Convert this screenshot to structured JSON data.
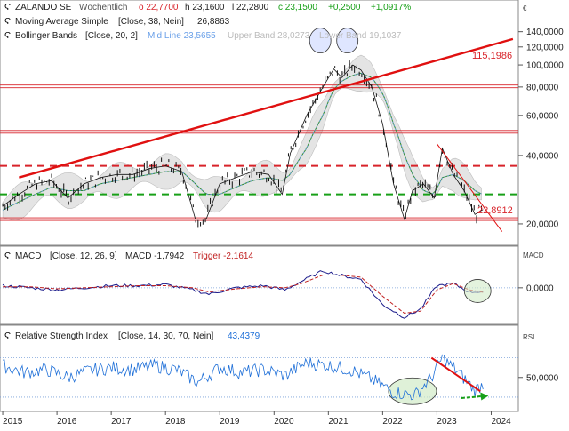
{
  "chart_data": [
    {
      "type": "line",
      "panel": "price",
      "scale": "log",
      "currency_marker": "€",
      "ylim": [
        17,
        150
      ],
      "y_ticks": [
        {
          "value": 140,
          "label": "140,0000"
        },
        {
          "value": 120,
          "label": "120,0000"
        },
        {
          "value": 100,
          "label": "100,0000"
        },
        {
          "value": 80,
          "label": "80,0000"
        },
        {
          "value": 60,
          "label": "60,0000"
        },
        {
          "value": 40,
          "label": "40,0000"
        },
        {
          "value": 20,
          "label": "20,0000"
        }
      ],
      "legend": [
        {
          "name": "ZALANDO SE",
          "text": "Wöchentlich",
          "o": "o 22,7700",
          "h": "h 23,1600",
          "l": "l 22,2800",
          "c": "c 23,1500",
          "chg": "+0,2500",
          "pct": "+1,0917%"
        },
        {
          "name": "Moving Average Simple",
          "params": "[Close, 38, Nein]",
          "value": "26,8863"
        },
        {
          "name": "Bollinger Bands",
          "params": "[Close, 20, 2]",
          "mid": "Mid Line 23,5655",
          "upper": "Upper Band 28,0273",
          "lower": "Lower Band 19,1037"
        }
      ],
      "annotations": [
        {
          "text": "115,1986",
          "value": 115.1986,
          "color": "#d8232a"
        },
        {
          "text": "22,8912",
          "value": 22.8912,
          "color": "#d8232a"
        }
      ],
      "x": [
        2015.0,
        2015.3,
        2015.6,
        2015.9,
        2016.2,
        2016.5,
        2016.8,
        2017.1,
        2017.4,
        2017.7,
        2018.0,
        2018.3,
        2018.55,
        2018.75,
        2019.0,
        2019.3,
        2019.6,
        2019.9,
        2020.15,
        2020.3,
        2020.6,
        2020.9,
        2021.1,
        2021.25,
        2021.45,
        2021.6,
        2021.8,
        2022.0,
        2022.2,
        2022.4,
        2022.55,
        2022.75,
        2022.95,
        2023.1,
        2023.3,
        2023.5,
        2023.7,
        2023.85
      ],
      "series": [
        {
          "name": "ZALANDO SE",
          "color": "#000000",
          "values": [
            24,
            27,
            30,
            31,
            26,
            30,
            32,
            33,
            33,
            35,
            36,
            34,
            21,
            21,
            30,
            32,
            34,
            33,
            27,
            41,
            60,
            80,
            96,
            88,
            100,
            95,
            80,
            55,
            30,
            21,
            28,
            30,
            26,
            43,
            33,
            28,
            22,
            23.15
          ]
        },
        {
          "name": "Moving Average Simple",
          "color": "#2e8b2e",
          "values": [
            23,
            25,
            27,
            29,
            28,
            28,
            30,
            31,
            32,
            33,
            34,
            34,
            30,
            27,
            27,
            29,
            31,
            32,
            31,
            33,
            43,
            60,
            78,
            85,
            90,
            92,
            88,
            75,
            55,
            40,
            33,
            28,
            27,
            32,
            33,
            31,
            28,
            26.89
          ]
        }
      ],
      "levels": [
        {
          "value": 80.5,
          "color": "#d8232a",
          "style": "double"
        },
        {
          "value": 50.8,
          "color": "#d8232a",
          "style": "double"
        },
        {
          "value": 36,
          "color": "#d8232a",
          "style": "dash"
        },
        {
          "value": 27,
          "color": "#18a018",
          "style": "dash"
        },
        {
          "value": 21,
          "color": "#d8232a",
          "style": "double"
        }
      ],
      "trendlines": [
        {
          "from": [
            2015.3,
            32
          ],
          "to": [
            2024.4,
            130
          ],
          "color": "#e01010"
        },
        {
          "from": [
            2023.0,
            45
          ],
          "to": [
            2024.2,
            18.5
          ],
          "color": "#e01010"
        }
      ]
    },
    {
      "type": "line",
      "panel": "macd",
      "legend": {
        "name": "MACD",
        "params": "[Close, 12, 26, 9]",
        "macd": "MACD -1,7942",
        "trigger": "Trigger -2,1614"
      },
      "panel_label": "MACD",
      "ylim": [
        -16,
        10
      ],
      "y_ticks": [
        {
          "value": 0,
          "label": "0,0000"
        }
      ],
      "x": [
        2015.0,
        2015.5,
        2016.0,
        2016.5,
        2017.0,
        2017.5,
        2018.0,
        2018.5,
        2018.8,
        2019.3,
        2019.8,
        2020.2,
        2020.5,
        2020.9,
        2021.2,
        2021.6,
        2022.0,
        2022.4,
        2022.7,
        2023.0,
        2023.3,
        2023.6,
        2023.85
      ],
      "series": [
        {
          "name": "MACD",
          "color": "#1a1a8a",
          "values": [
            1,
            0,
            -1,
            0,
            1,
            1,
            1.5,
            -1,
            -3,
            0,
            1,
            -1,
            3,
            8,
            6,
            4,
            -8,
            -14,
            -10,
            1,
            2,
            -2,
            -1.79
          ]
        },
        {
          "name": "Trigger",
          "color": "#c02020",
          "values": [
            0.5,
            0.5,
            -0.5,
            0,
            0.5,
            1,
            1,
            0,
            -2,
            -0.5,
            0.5,
            0,
            2,
            6,
            6,
            5,
            -4,
            -12,
            -11,
            -1,
            2,
            -1,
            -2.16
          ]
        }
      ]
    },
    {
      "type": "line",
      "panel": "rsi",
      "legend": {
        "name": "Relative Strength Index",
        "params": "[Close, 14, 30, 70, Nein]",
        "value": "43,4379"
      },
      "panel_label": "RSI",
      "ylim": [
        20,
        85
      ],
      "y_ticks": [
        {
          "value": 50,
          "label": "50,0000"
        }
      ],
      "guides": [
        70,
        30
      ],
      "x": [
        2015.0,
        2015.4,
        2015.8,
        2016.2,
        2016.6,
        2017.0,
        2017.4,
        2017.8,
        2018.2,
        2018.6,
        2019.0,
        2019.4,
        2019.8,
        2020.2,
        2020.6,
        2021.0,
        2021.4,
        2021.8,
        2022.2,
        2022.6,
        2022.9,
        2023.1,
        2023.4,
        2023.7,
        2023.85
      ],
      "series": [
        {
          "name": "RSI",
          "color": "#1e6fd8",
          "values": [
            62,
            55,
            58,
            50,
            57,
            60,
            58,
            62,
            58,
            45,
            60,
            55,
            58,
            52,
            65,
            62,
            58,
            48,
            35,
            32,
            50,
            70,
            55,
            37,
            43.44
          ]
        }
      ],
      "trendlines": [
        {
          "from": [
            2022.9,
            70
          ],
          "to": [
            2023.8,
            36
          ],
          "color": "#e01010"
        }
      ]
    }
  ],
  "x_axis": {
    "ticks": [
      "2015",
      "2016",
      "2017",
      "2018",
      "2019",
      "2020",
      "2021",
      "2022",
      "2023",
      "2024"
    ],
    "xlim": [
      2014.95,
      2024.5
    ]
  }
}
